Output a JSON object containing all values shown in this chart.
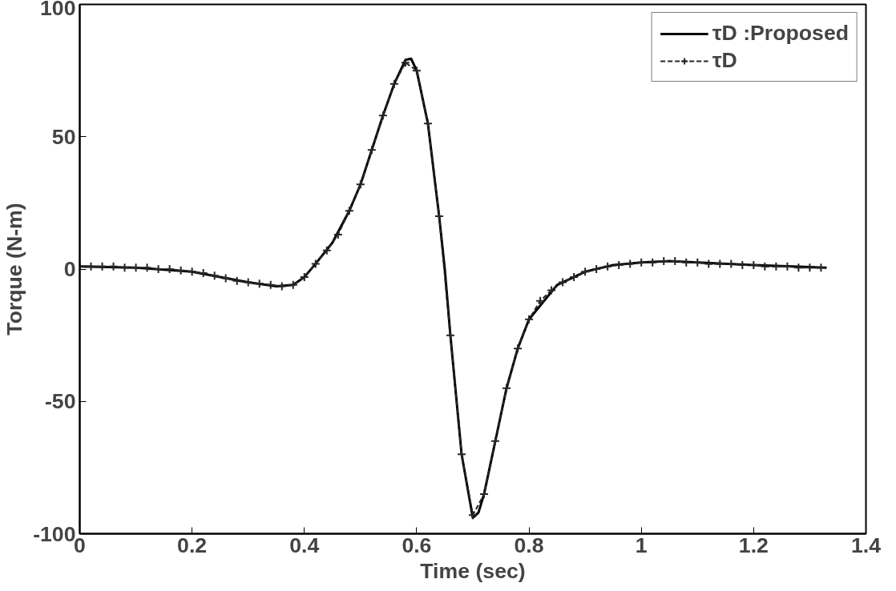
{
  "chart_data": {
    "type": "line",
    "xlabel": "Time (sec)",
    "ylabel": "Torque (N-m)",
    "x": [
      0,
      0.1,
      0.2,
      0.25,
      0.3,
      0.35,
      0.38,
      0.4,
      0.42,
      0.45,
      0.48,
      0.5,
      0.52,
      0.54,
      0.56,
      0.58,
      0.59,
      0.6,
      0.62,
      0.64,
      0.65,
      0.66,
      0.68,
      0.7,
      0.71,
      0.72,
      0.74,
      0.76,
      0.78,
      0.8,
      0.85,
      0.9,
      0.95,
      1.0,
      1.05,
      1.1,
      1.2,
      1.33
    ],
    "series": [
      {
        "name": "τD :Proposed",
        "color": "#000000",
        "line_style": "solid",
        "marker": "none",
        "values": [
          1,
          0.5,
          -1,
          -3,
          -5,
          -6.5,
          -6,
          -3,
          2,
          10,
          22,
          32,
          45,
          58,
          70,
          79,
          79.5,
          75,
          55,
          20,
          0,
          -25,
          -70,
          -94,
          -92,
          -85,
          -65,
          -45,
          -30,
          -19,
          -6,
          -1,
          1.5,
          2.5,
          3,
          2.5,
          1.5,
          0.5
        ]
      },
      {
        "name": "τD",
        "color": "#262626",
        "line_style": "dashed",
        "marker": "cross",
        "x": [
          0,
          0.02,
          0.04,
          0.06,
          0.08,
          0.1,
          0.12,
          0.14,
          0.16,
          0.18,
          0.2,
          0.22,
          0.24,
          0.26,
          0.28,
          0.3,
          0.32,
          0.34,
          0.36,
          0.38,
          0.4,
          0.42,
          0.44,
          0.46,
          0.48,
          0.5,
          0.52,
          0.54,
          0.56,
          0.58,
          0.6,
          0.62,
          0.64,
          0.66,
          0.68,
          0.7,
          0.72,
          0.74,
          0.76,
          0.78,
          0.8,
          0.82,
          0.84,
          0.86,
          0.88,
          0.9,
          0.92,
          0.94,
          0.96,
          0.98,
          1.0,
          1.02,
          1.04,
          1.06,
          1.08,
          1.1,
          1.12,
          1.14,
          1.16,
          1.18,
          1.2,
          1.22,
          1.24,
          1.26,
          1.28,
          1.3,
          1.32
        ],
        "values": [
          1,
          1,
          1,
          1,
          0.5,
          0.5,
          0.5,
          0,
          0,
          -0.5,
          -1,
          -1.5,
          -2.5,
          -3.5,
          -4.5,
          -5,
          -5.5,
          -6,
          -6.5,
          -6,
          -3,
          2,
          7,
          13,
          22,
          32,
          45,
          58,
          70,
          78,
          75,
          55,
          20,
          -25,
          -70,
          -93,
          -85,
          -65,
          -45,
          -30,
          -19,
          -12,
          -8,
          -5,
          -3,
          -1,
          0,
          1,
          1.5,
          2,
          2.5,
          2.5,
          3,
          3,
          2.5,
          2.5,
          2,
          2,
          2,
          1.5,
          1.5,
          1,
          1,
          1,
          0.5,
          0.5,
          0.5
        ]
      }
    ],
    "xlim": [
      0,
      1.4
    ],
    "ylim": [
      -100,
      100
    ],
    "xticks": [
      0,
      0.2,
      0.4,
      0.6,
      0.8,
      1,
      1.2,
      1.4
    ],
    "yticks": [
      -100,
      -50,
      0,
      50,
      100
    ],
    "grid": false,
    "legend": "top right"
  }
}
